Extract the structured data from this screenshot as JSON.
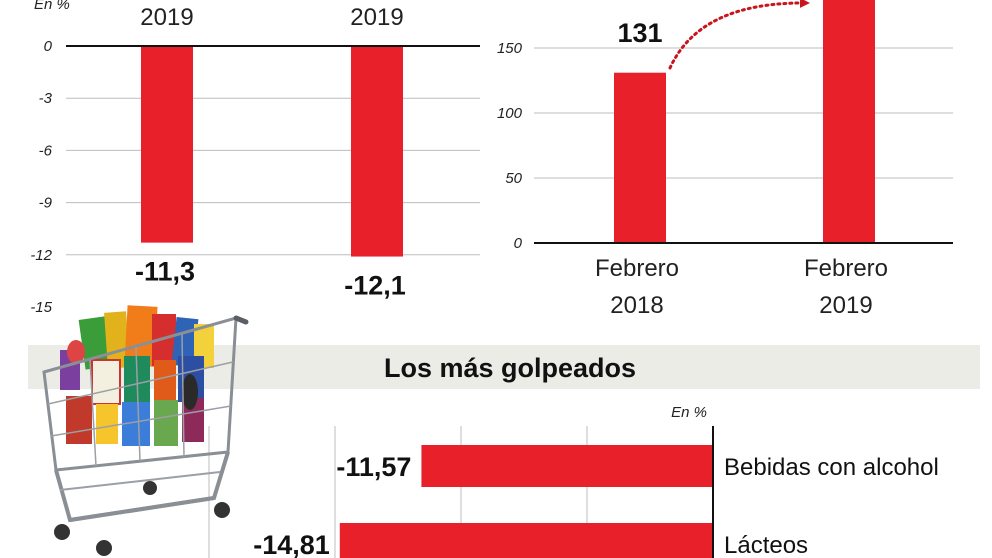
{
  "chart_data": [
    {
      "type": "bar",
      "unit_label": "En %",
      "categories": [
        "2019",
        "2019"
      ],
      "values": [
        -11.3,
        -12.1
      ],
      "data_labels": [
        "-11,3",
        "-12,1"
      ],
      "ylim": [
        -15,
        0
      ],
      "yticks": [
        0,
        -3,
        -6,
        -9,
        -12,
        -15
      ],
      "ytick_labels": [
        "0",
        "-3",
        "-6",
        "-9",
        "-12",
        "-15"
      ],
      "bar_color": "#e8202a",
      "grid": true
    },
    {
      "type": "bar",
      "categories": [
        [
          "Febrero",
          "2018"
        ],
        [
          "Febrero",
          "2019"
        ]
      ],
      "values": [
        131,
        null
      ],
      "data_labels": [
        "131",
        ""
      ],
      "ylim": [
        0,
        150
      ],
      "yticks": [
        0,
        50,
        100,
        150
      ],
      "ytick_labels": [
        "0",
        "50",
        "100",
        "150"
      ],
      "bar_color": "#e8202a",
      "grid": true,
      "annotation": "dotted red arrow from the 2018 bar toward the 2019 bar"
    },
    {
      "type": "bar",
      "orientation": "horizontal",
      "title": "Los más golpeados",
      "unit_label": "En %",
      "categories": [
        "Bebidas con alcohol",
        "Lácteos"
      ],
      "values": [
        -11.57,
        -14.81
      ],
      "data_labels": [
        "-11,57",
        "-14,81"
      ],
      "bar_color": "#e8202a",
      "grid": true
    }
  ],
  "illustration": {
    "icon": "shopping-cart-with-groceries-icon"
  }
}
